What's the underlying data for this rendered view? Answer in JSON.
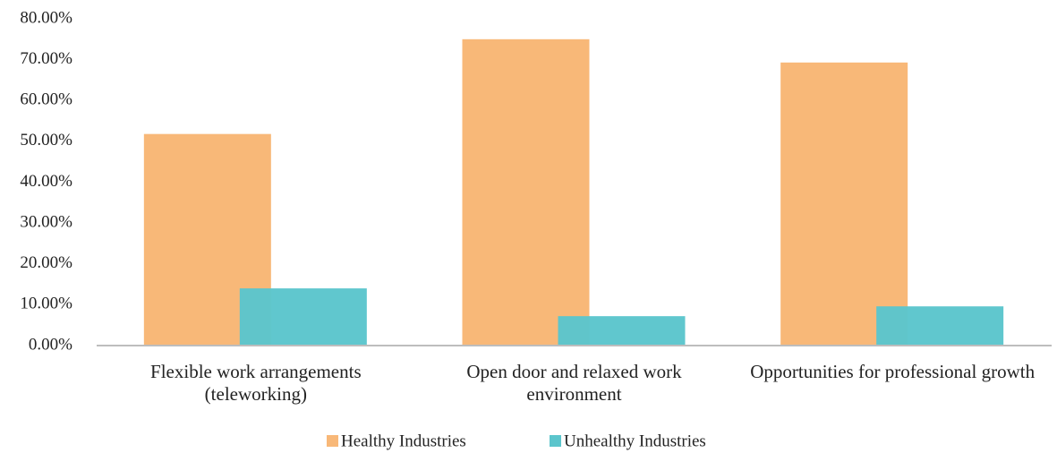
{
  "chart_data": {
    "type": "bar",
    "categories": [
      "Flexible work arrangements (teleworking)",
      "Open door and relaxed work environment",
      "Opportunities for professional growth"
    ],
    "series": [
      {
        "name": "Healthy Industries",
        "color": "#f8b878",
        "values": [
          51.8,
          75.0,
          69.3
        ]
      },
      {
        "name": "Unhealthy Industries",
        "color": "#5bc5cc",
        "values": [
          14.0,
          7.2,
          9.6
        ]
      }
    ],
    "ylim": [
      0,
      80
    ],
    "yticks": [
      {
        "value": 0,
        "label": "0.00%"
      },
      {
        "value": 10,
        "label": "10.00%"
      },
      {
        "value": 20,
        "label": "20.00%"
      },
      {
        "value": 30,
        "label": "30.00%"
      },
      {
        "value": 40,
        "label": "40.00%"
      },
      {
        "value": 50,
        "label": "50.00%"
      },
      {
        "value": 60,
        "label": "60.00%"
      },
      {
        "value": 70,
        "label": "70.00%"
      },
      {
        "value": 80,
        "label": "80.00%"
      }
    ],
    "grid": false,
    "legend": "bottom"
  }
}
